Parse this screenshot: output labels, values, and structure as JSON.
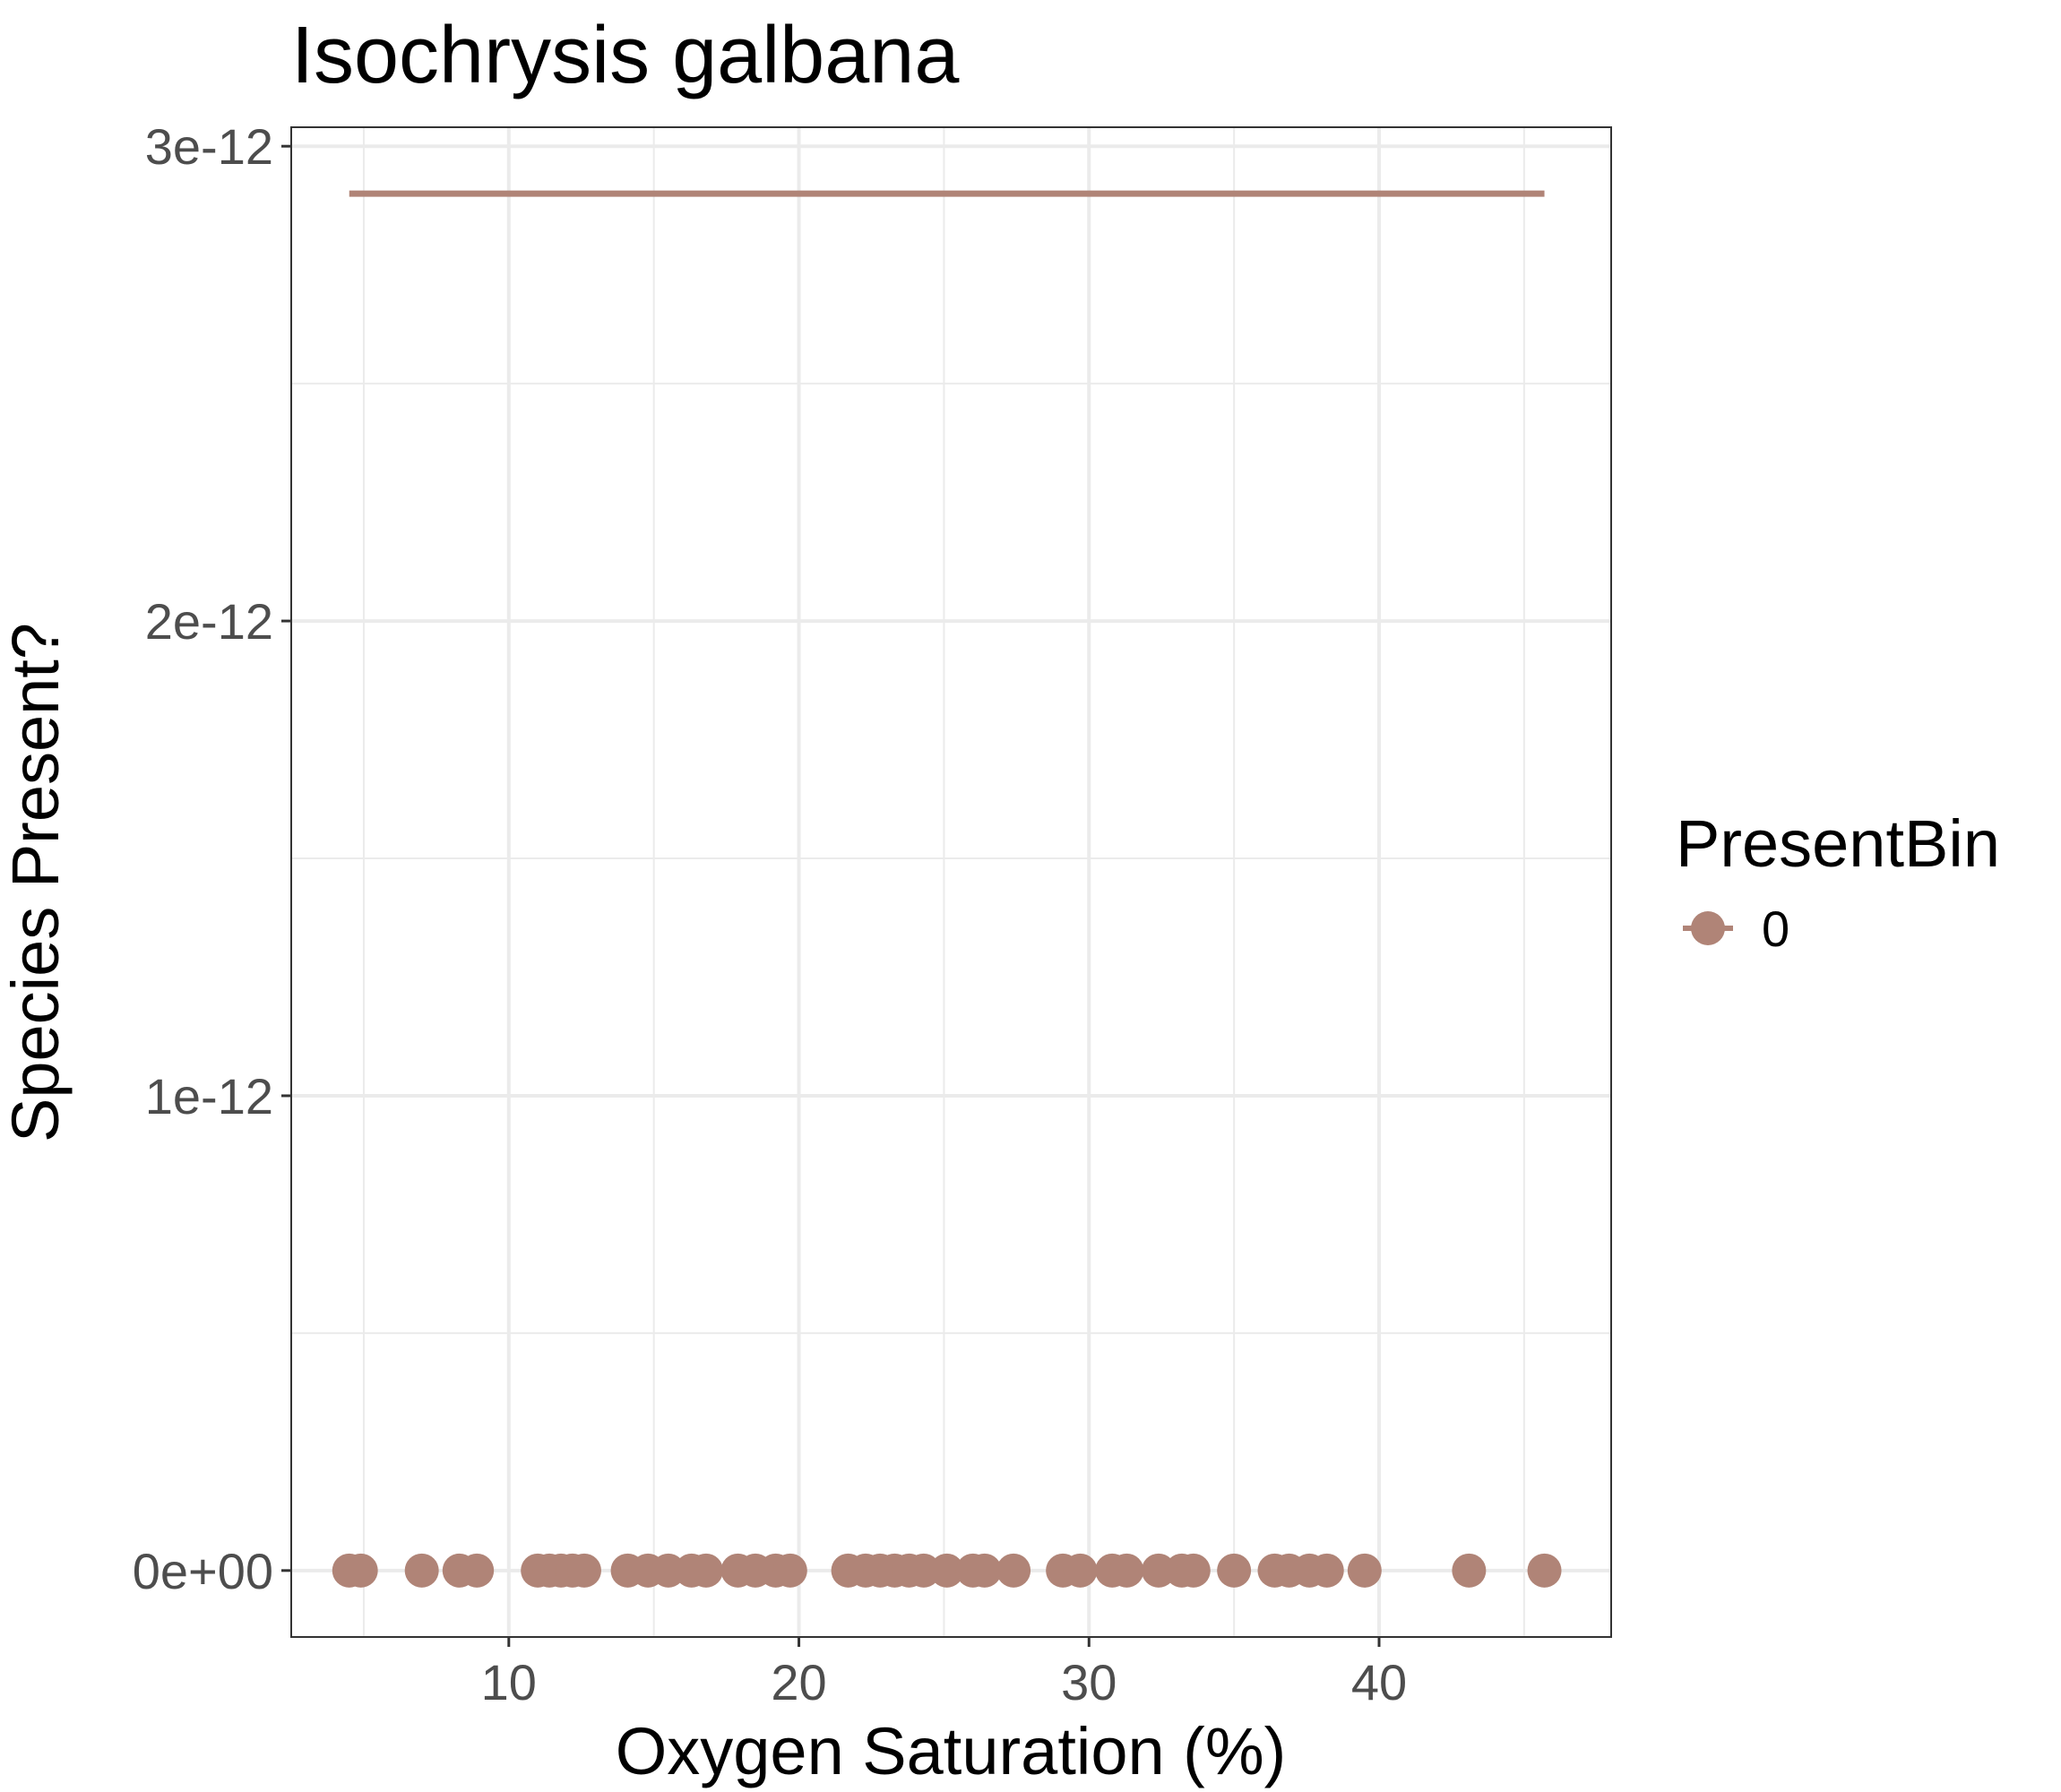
{
  "chart_data": {
    "type": "scatter",
    "title": "Isochrysis galbana",
    "xlabel": "Oxygen Saturation (%)",
    "ylabel": "Species Present?",
    "xlim": [
      2.5,
      48
    ],
    "ylim": [
      -1.4e-13,
      3.04e-12
    ],
    "x_ticks": [
      10,
      20,
      30,
      40
    ],
    "x_tick_labels": [
      "10",
      "20",
      "30",
      "40"
    ],
    "y_ticks": [
      0,
      1e-12,
      2e-12,
      3e-12
    ],
    "y_tick_labels": [
      "0e+00",
      "1e-12",
      "2e-12",
      "3e-12"
    ],
    "grid": true,
    "legend": {
      "title": "PresentBin",
      "position": "right",
      "entries": [
        "0"
      ]
    },
    "series": [
      {
        "name": "0",
        "color": "#b08477",
        "points_y": 0,
        "points_x": [
          4.5,
          4.9,
          7.0,
          8.3,
          8.9,
          11.0,
          11.4,
          11.8,
          12.2,
          12.6,
          14.1,
          14.8,
          15.5,
          16.3,
          16.8,
          17.9,
          18.5,
          19.2,
          19.7,
          21.7,
          22.3,
          22.8,
          23.3,
          23.8,
          24.3,
          25.1,
          26.0,
          26.4,
          27.4,
          29.1,
          29.7,
          30.8,
          31.3,
          32.4,
          33.2,
          33.6,
          35.0,
          36.4,
          36.9,
          37.6,
          38.2,
          39.5,
          43.1,
          45.7
        ],
        "line_x": [
          4.5,
          45.7
        ],
        "line_y": [
          2.9e-12,
          2.9e-12
        ]
      }
    ]
  }
}
